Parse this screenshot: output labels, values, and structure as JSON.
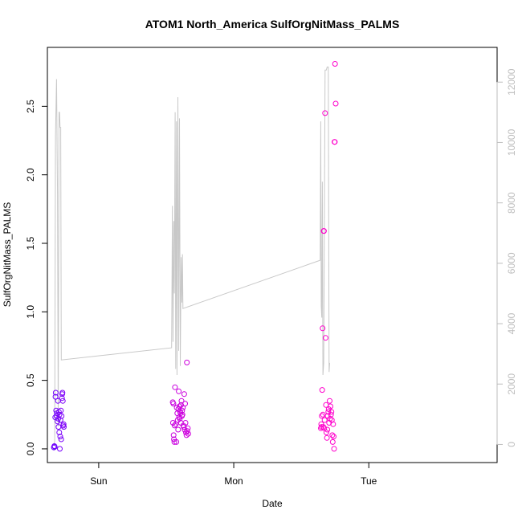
{
  "chart_data": {
    "type": "scatter",
    "title": "ATOM1 North_America SulfOrgNitMass_PALMS",
    "xlabel": "Date",
    "ylabel": "SulfOrgNitMass_PALMS",
    "x_unit": "days",
    "xlim": [
      -0.38,
      2.95
    ],
    "ylim": [
      -0.1,
      2.93
    ],
    "y2lim": [
      -600,
      13150
    ],
    "x_ticks": [
      {
        "value": 0.0,
        "label": "Sun"
      },
      {
        "value": 1.0,
        "label": "Mon"
      },
      {
        "value": 2.0,
        "label": "Tue"
      }
    ],
    "y_ticks": [
      {
        "value": 0.0,
        "label": "0.0"
      },
      {
        "value": 0.5,
        "label": "0.5"
      },
      {
        "value": 1.0,
        "label": "1.0"
      },
      {
        "value": 1.5,
        "label": "1.5"
      },
      {
        "value": 2.0,
        "label": "2.0"
      },
      {
        "value": 2.5,
        "label": "2.5"
      }
    ],
    "y2_ticks": [
      {
        "value": 0,
        "label": "0"
      },
      {
        "value": 2000,
        "label": "2000"
      },
      {
        "value": 4000,
        "label": "4000"
      },
      {
        "value": 6000,
        "label": "6000"
      },
      {
        "value": 8000,
        "label": "8000"
      },
      {
        "value": 10000,
        "label": "10000"
      },
      {
        "value": 12000,
        "label": "12000"
      }
    ],
    "grid": false,
    "series": [
      {
        "kind": "points",
        "axis": "left",
        "marker": "open-circle",
        "color_gradient": [
          "#6a00ff",
          "#ff00cc"
        ],
        "points": [
          {
            "x": -0.332,
            "y": 0.01
          },
          {
            "x": -0.328,
            "y": 0.02
          },
          {
            "x": -0.326,
            "y": 0.015
          },
          {
            "x": -0.322,
            "y": 0.23
          },
          {
            "x": -0.32,
            "y": 0.38
          },
          {
            "x": -0.318,
            "y": 0.41
          },
          {
            "x": -0.315,
            "y": 0.28
          },
          {
            "x": -0.312,
            "y": 0.24
          },
          {
            "x": -0.31,
            "y": 0.26
          },
          {
            "x": -0.305,
            "y": 0.2
          },
          {
            "x": -0.302,
            "y": 0.35
          },
          {
            "x": -0.3,
            "y": 0.22
          },
          {
            "x": -0.298,
            "y": 0.16
          },
          {
            "x": -0.295,
            "y": 0.27
          },
          {
            "x": -0.292,
            "y": 0.12
          },
          {
            "x": -0.29,
            "y": 0.25
          },
          {
            "x": -0.288,
            "y": 0.0
          },
          {
            "x": -0.285,
            "y": 0.09
          },
          {
            "x": -0.283,
            "y": 0.21
          },
          {
            "x": -0.28,
            "y": 0.28
          },
          {
            "x": -0.278,
            "y": 0.07
          },
          {
            "x": -0.275,
            "y": 0.24
          },
          {
            "x": -0.272,
            "y": 0.37
          },
          {
            "x": -0.27,
            "y": 0.4
          },
          {
            "x": -0.268,
            "y": 0.41
          },
          {
            "x": -0.266,
            "y": 0.35
          },
          {
            "x": -0.263,
            "y": 0.17
          },
          {
            "x": -0.26,
            "y": 0.18
          },
          {
            "x": -0.258,
            "y": 0.16
          },
          {
            "x": 0.548,
            "y": 0.34
          },
          {
            "x": 0.55,
            "y": 0.19
          },
          {
            "x": 0.553,
            "y": 0.33
          },
          {
            "x": 0.555,
            "y": 0.1
          },
          {
            "x": 0.557,
            "y": 0.07
          },
          {
            "x": 0.56,
            "y": 0.05
          },
          {
            "x": 0.562,
            "y": 0.17
          },
          {
            "x": 0.565,
            "y": 0.45
          },
          {
            "x": 0.57,
            "y": 0.18
          },
          {
            "x": 0.575,
            "y": 0.05
          },
          {
            "x": 0.578,
            "y": 0.3
          },
          {
            "x": 0.582,
            "y": 0.26
          },
          {
            "x": 0.585,
            "y": 0.21
          },
          {
            "x": 0.588,
            "y": 0.14
          },
          {
            "x": 0.59,
            "y": 0.29
          },
          {
            "x": 0.593,
            "y": 0.42
          },
          {
            "x": 0.595,
            "y": 0.23
          },
          {
            "x": 0.598,
            "y": 0.31
          },
          {
            "x": 0.6,
            "y": 0.22
          },
          {
            "x": 0.603,
            "y": 0.27
          },
          {
            "x": 0.606,
            "y": 0.26
          },
          {
            "x": 0.608,
            "y": 0.19
          },
          {
            "x": 0.61,
            "y": 0.32
          },
          {
            "x": 0.613,
            "y": 0.35
          },
          {
            "x": 0.616,
            "y": 0.24
          },
          {
            "x": 0.618,
            "y": 0.28
          },
          {
            "x": 0.62,
            "y": 0.25
          },
          {
            "x": 0.623,
            "y": 0.3
          },
          {
            "x": 0.626,
            "y": 0.17
          },
          {
            "x": 0.63,
            "y": 0.16
          },
          {
            "x": 0.633,
            "y": 0.4
          },
          {
            "x": 0.636,
            "y": 0.14
          },
          {
            "x": 0.64,
            "y": 0.33
          },
          {
            "x": 0.643,
            "y": 0.19
          },
          {
            "x": 0.646,
            "y": 0.12
          },
          {
            "x": 0.65,
            "y": 0.1
          },
          {
            "x": 0.653,
            "y": 0.63
          },
          {
            "x": 0.656,
            "y": 0.13
          },
          {
            "x": 0.66,
            "y": 0.15
          },
          {
            "x": 0.663,
            "y": 0.11
          },
          {
            "x": 1.645,
            "y": 0.15
          },
          {
            "x": 1.648,
            "y": 0.18
          },
          {
            "x": 1.65,
            "y": 0.16
          },
          {
            "x": 1.652,
            "y": 0.24
          },
          {
            "x": 1.655,
            "y": 0.43
          },
          {
            "x": 1.658,
            "y": 0.88
          },
          {
            "x": 1.66,
            "y": 0.25
          },
          {
            "x": 1.663,
            "y": 0.16
          },
          {
            "x": 1.666,
            "y": 1.59
          },
          {
            "x": 1.668,
            "y": 1.59
          },
          {
            "x": 1.67,
            "y": 0.15
          },
          {
            "x": 1.673,
            "y": 0.21
          },
          {
            "x": 1.676,
            "y": 2.45
          },
          {
            "x": 1.68,
            "y": 0.81
          },
          {
            "x": 1.683,
            "y": 0.32
          },
          {
            "x": 1.686,
            "y": 0.12
          },
          {
            "x": 1.69,
            "y": 0.08
          },
          {
            "x": 1.693,
            "y": 0.14
          },
          {
            "x": 1.696,
            "y": 0.24
          },
          {
            "x": 1.7,
            "y": 0.27
          },
          {
            "x": 1.703,
            "y": 0.29
          },
          {
            "x": 1.706,
            "y": 0.19
          },
          {
            "x": 1.71,
            "y": 0.35
          },
          {
            "x": 1.713,
            "y": 0.22
          },
          {
            "x": 1.716,
            "y": 0.31
          },
          {
            "x": 1.72,
            "y": 0.25
          },
          {
            "x": 1.723,
            "y": 0.27
          },
          {
            "x": 1.726,
            "y": 0.21
          },
          {
            "x": 1.73,
            "y": 0.1
          },
          {
            "x": 1.733,
            "y": 0.05
          },
          {
            "x": 1.736,
            "y": 0.18
          },
          {
            "x": 1.74,
            "y": 0.09
          },
          {
            "x": 1.743,
            "y": 0.0
          },
          {
            "x": 1.746,
            "y": 2.24
          },
          {
            "x": 1.748,
            "y": 2.24
          },
          {
            "x": 1.75,
            "y": 2.81
          },
          {
            "x": 1.755,
            "y": 2.52
          }
        ]
      },
      {
        "kind": "line",
        "axis": "right",
        "color": "#c8c8c8",
        "points": [
          {
            "x": -0.332,
            "y": 0
          },
          {
            "x": -0.326,
            "y": 100
          },
          {
            "x": -0.32,
            "y": 10200
          },
          {
            "x": -0.312,
            "y": 12100
          },
          {
            "x": -0.305,
            "y": 8300
          },
          {
            "x": -0.3,
            "y": 600
          },
          {
            "x": -0.294,
            "y": 11000
          },
          {
            "x": -0.29,
            "y": 11000
          },
          {
            "x": -0.286,
            "y": 10500
          },
          {
            "x": -0.281,
            "y": 10500
          },
          {
            "x": -0.277,
            "y": 2800
          },
          {
            "x": 0.54,
            "y": 3200
          },
          {
            "x": 0.546,
            "y": 7900
          },
          {
            "x": 0.55,
            "y": 3400
          },
          {
            "x": 0.556,
            "y": 7400
          },
          {
            "x": 0.56,
            "y": 5000
          },
          {
            "x": 0.566,
            "y": 11000
          },
          {
            "x": 0.57,
            "y": 2500
          },
          {
            "x": 0.576,
            "y": 10700
          },
          {
            "x": 0.58,
            "y": 2300
          },
          {
            "x": 0.586,
            "y": 11500
          },
          {
            "x": 0.592,
            "y": 3100
          },
          {
            "x": 0.598,
            "y": 10800
          },
          {
            "x": 0.604,
            "y": 2600
          },
          {
            "x": 0.61,
            "y": 6200
          },
          {
            "x": 0.616,
            "y": 4700
          },
          {
            "x": 0.62,
            "y": 6300
          },
          {
            "x": 0.624,
            "y": 4500
          },
          {
            "x": 1.64,
            "y": 6100
          },
          {
            "x": 1.644,
            "y": 10700
          },
          {
            "x": 1.648,
            "y": 4600
          },
          {
            "x": 1.652,
            "y": 4200
          },
          {
            "x": 1.656,
            "y": 8700
          },
          {
            "x": 1.66,
            "y": 2300
          },
          {
            "x": 1.666,
            "y": 2700
          },
          {
            "x": 1.676,
            "y": 12400
          },
          {
            "x": 1.685,
            "y": 12400
          },
          {
            "x": 1.692,
            "y": 12500
          },
          {
            "x": 1.696,
            "y": 12500
          },
          {
            "x": 1.7,
            "y": 12500
          },
          {
            "x": 1.706,
            "y": 2400
          },
          {
            "x": 1.71,
            "y": 2700
          }
        ]
      }
    ]
  }
}
